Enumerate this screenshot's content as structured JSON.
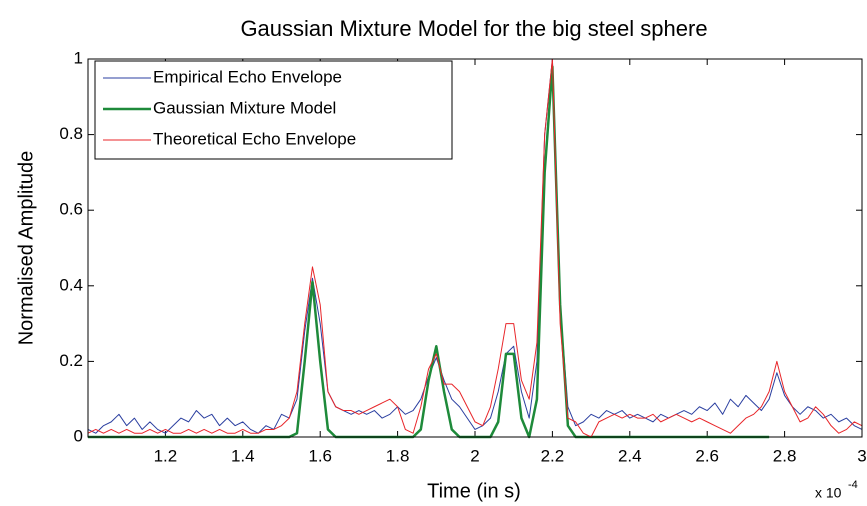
{
  "chart_data": {
    "type": "line",
    "title": "Gaussian Mixture Model for the big steel sphere",
    "x_label": "Time (in s)",
    "y_label": "Normalised Amplitude",
    "x_scale_label": "x 10",
    "x_scale_exponent": "-4",
    "x": [
      1.0,
      1.02,
      1.04,
      1.06,
      1.08,
      1.1,
      1.12,
      1.14,
      1.16,
      1.18,
      1.2,
      1.22,
      1.24,
      1.26,
      1.28,
      1.3,
      1.32,
      1.34,
      1.36,
      1.38,
      1.4,
      1.42,
      1.44,
      1.46,
      1.48,
      1.5,
      1.52,
      1.54,
      1.56,
      1.58,
      1.6,
      1.62,
      1.64,
      1.66,
      1.68,
      1.7,
      1.72,
      1.74,
      1.76,
      1.78,
      1.8,
      1.82,
      1.84,
      1.86,
      1.88,
      1.9,
      1.92,
      1.94,
      1.96,
      1.98,
      2.0,
      2.02,
      2.04,
      2.06,
      2.08,
      2.1,
      2.12,
      2.14,
      2.16,
      2.18,
      2.2,
      2.22,
      2.24,
      2.26,
      2.28,
      2.3,
      2.32,
      2.34,
      2.36,
      2.38,
      2.4,
      2.42,
      2.44,
      2.46,
      2.48,
      2.5,
      2.52,
      2.54,
      2.56,
      2.58,
      2.6,
      2.62,
      2.64,
      2.66,
      2.68,
      2.7,
      2.72,
      2.74,
      2.76,
      2.78,
      2.8,
      2.82,
      2.84,
      2.86,
      2.88,
      2.9,
      2.92,
      2.94,
      2.96,
      2.98,
      3.0
    ],
    "series": [
      {
        "name": "Empirical Echo Envelope",
        "color": "#2b3fa0",
        "width": 1,
        "values": [
          0.02,
          0.01,
          0.03,
          0.04,
          0.06,
          0.03,
          0.05,
          0.02,
          0.04,
          0.02,
          0.01,
          0.03,
          0.05,
          0.04,
          0.07,
          0.05,
          0.06,
          0.03,
          0.05,
          0.03,
          0.04,
          0.02,
          0.01,
          0.03,
          0.02,
          0.06,
          0.05,
          0.1,
          0.28,
          0.42,
          0.3,
          0.12,
          0.08,
          0.07,
          0.06,
          0.07,
          0.06,
          0.07,
          0.05,
          0.06,
          0.08,
          0.06,
          0.07,
          0.1,
          0.16,
          0.21,
          0.15,
          0.1,
          0.08,
          0.05,
          0.02,
          0.03,
          0.05,
          0.12,
          0.22,
          0.24,
          0.12,
          0.05,
          0.2,
          0.8,
          1.0,
          0.35,
          0.08,
          0.03,
          0.04,
          0.06,
          0.05,
          0.07,
          0.06,
          0.07,
          0.05,
          0.06,
          0.05,
          0.04,
          0.06,
          0.05,
          0.06,
          0.07,
          0.06,
          0.08,
          0.07,
          0.09,
          0.06,
          0.1,
          0.08,
          0.11,
          0.09,
          0.07,
          0.1,
          0.17,
          0.11,
          0.08,
          0.06,
          0.08,
          0.07,
          0.05,
          0.06,
          0.04,
          0.05,
          0.03,
          0.02
        ]
      },
      {
        "name": "Gaussian Mixture Model",
        "color": "#1e8a3a",
        "width": 2.5,
        "values": [
          0,
          0,
          0,
          0,
          0,
          0,
          0,
          0,
          0,
          0,
          0,
          0,
          0,
          0,
          0,
          0,
          0,
          0,
          0,
          0,
          0,
          0,
          0,
          0,
          0,
          0,
          0,
          0.01,
          0.2,
          0.41,
          0.2,
          0.02,
          0,
          0,
          0,
          0,
          0,
          0,
          0,
          0,
          0,
          0,
          0,
          0.02,
          0.15,
          0.24,
          0.12,
          0.02,
          0,
          0,
          0,
          0,
          0,
          0.04,
          0.22,
          0.22,
          0.05,
          0,
          0.1,
          0.7,
          0.98,
          0.35,
          0.03,
          0,
          0,
          0,
          0,
          0,
          0,
          0,
          0,
          0,
          0,
          0,
          0,
          0,
          0,
          0,
          0,
          0,
          0,
          0,
          0,
          0,
          0,
          0,
          0,
          0,
          0,
          null,
          null,
          null,
          null,
          null,
          null,
          null,
          null,
          null,
          null,
          null,
          null
        ]
      },
      {
        "name": "Theoretical Echo Envelope",
        "color": "#e8262a",
        "width": 1,
        "values": [
          0.01,
          0.02,
          0.01,
          0.02,
          0.01,
          0.02,
          0.01,
          0.01,
          0.02,
          0.01,
          0.02,
          0.01,
          0.01,
          0.02,
          0.01,
          0.02,
          0.01,
          0.02,
          0.01,
          0.01,
          0.02,
          0.01,
          0.01,
          0.02,
          0.02,
          0.03,
          0.05,
          0.12,
          0.3,
          0.45,
          0.35,
          0.12,
          0.08,
          0.07,
          0.07,
          0.06,
          0.07,
          0.08,
          0.09,
          0.1,
          0.08,
          0.02,
          0.01,
          0.08,
          0.18,
          0.22,
          0.14,
          0.14,
          0.12,
          0.08,
          0.04,
          0.03,
          0.08,
          0.18,
          0.3,
          0.3,
          0.15,
          0.1,
          0.25,
          0.8,
          1.0,
          0.3,
          0.05,
          0.04,
          0.01,
          0.0,
          0.04,
          0.05,
          0.06,
          0.05,
          0.06,
          0.05,
          0.05,
          0.06,
          0.04,
          0.05,
          0.06,
          0.05,
          0.04,
          0.05,
          0.04,
          0.03,
          0.02,
          0.01,
          0.03,
          0.05,
          0.06,
          0.08,
          0.12,
          0.2,
          0.12,
          0.08,
          0.04,
          0.05,
          0.08,
          0.06,
          0.03,
          0.01,
          0.02,
          0.04,
          0.03
        ]
      }
    ],
    "xlim": [
      1,
      3
    ],
    "ylim": [
      0,
      1
    ],
    "xticks": [
      1.2,
      1.4,
      1.6,
      1.8,
      2,
      2.2,
      2.4,
      2.6,
      2.8,
      3
    ],
    "yticks": [
      0,
      0.2,
      0.4,
      0.6,
      0.8,
      1
    ],
    "grid": false,
    "legend": "upper-left"
  }
}
